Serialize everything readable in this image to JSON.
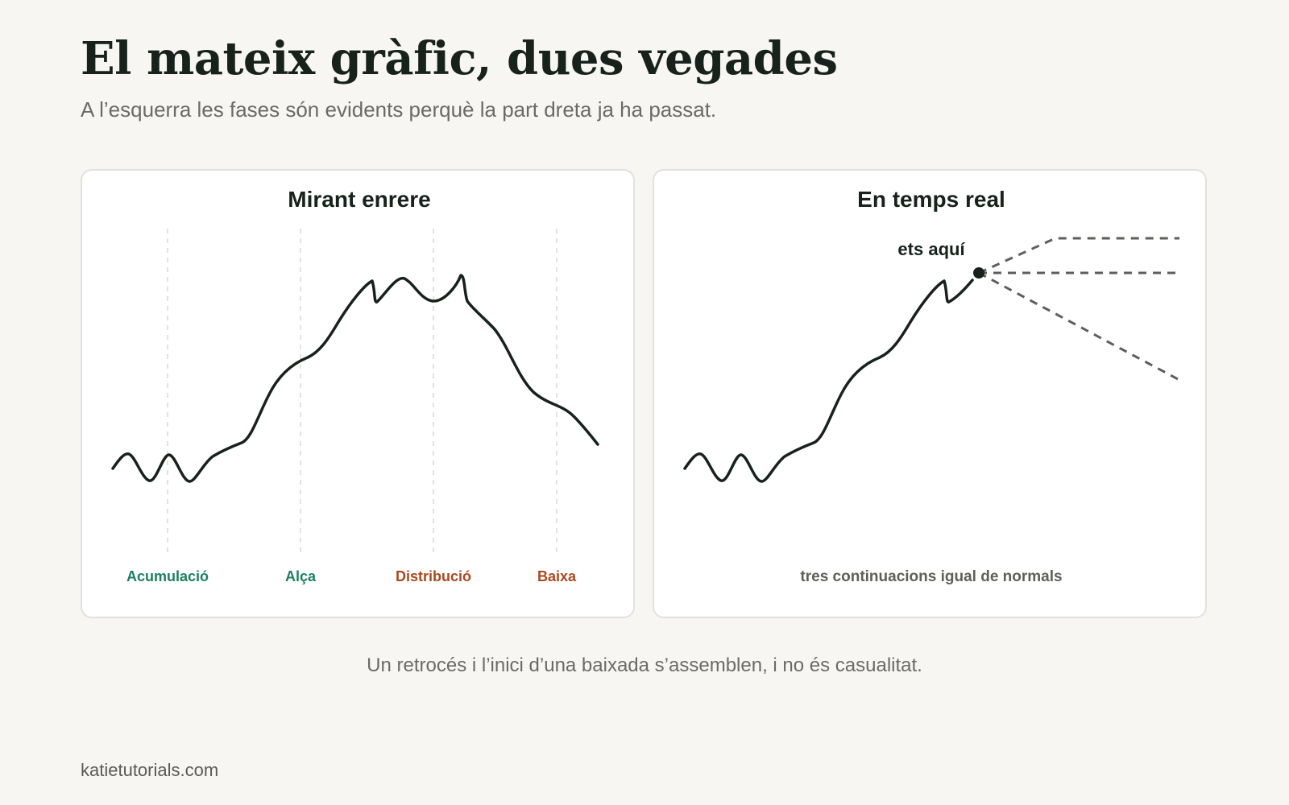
{
  "header": {
    "title": "El mateix gràfic, dues vegades",
    "subtitle": "A l’esquerra les fases són evidents perquè la part dreta ja ha passat."
  },
  "panels": {
    "hindsight": {
      "title": "Mirant enrere",
      "phases": [
        {
          "label": "Acumulació",
          "color": "#1e7f5c"
        },
        {
          "label": "Alça",
          "color": "#1e7f5c"
        },
        {
          "label": "Distribució",
          "color": "#a8491f"
        },
        {
          "label": "Baixa",
          "color": "#a8491f"
        }
      ]
    },
    "realtime": {
      "title": "En temps real",
      "marker_label": "ets aquí",
      "footnote": "tres continuacions igual de normals"
    }
  },
  "caption": "Un retrocés i l’inici d’una baixada s’assemblen, i no és casualitat.",
  "footer": {
    "site": "katietutorials.com"
  },
  "colors": {
    "line": "#17221c",
    "green_phase": "#1e7f5c",
    "red_phase": "#a8491f",
    "dashed_paths": "#5e5e5a",
    "background": "#f7f6f2"
  }
}
